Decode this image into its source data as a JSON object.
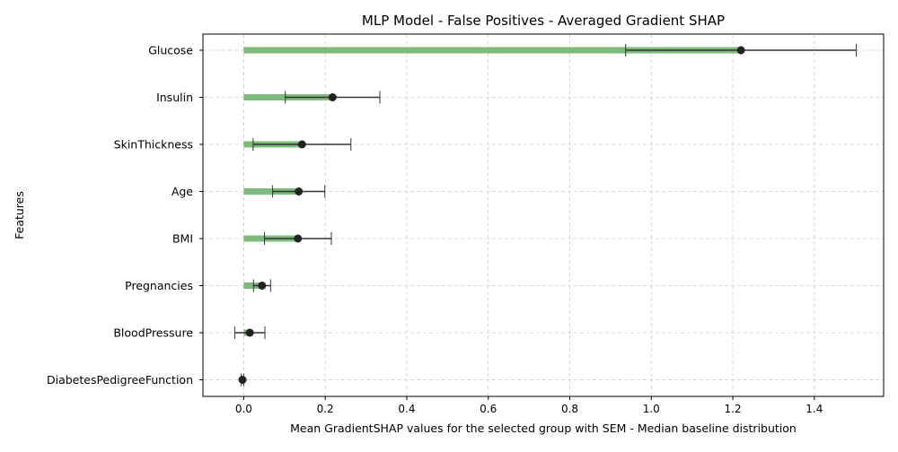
{
  "chart_data": {
    "type": "bar",
    "orientation": "horizontal",
    "title": "MLP Model - False Positives - Averaged Gradient SHAP",
    "xlabel": "Mean GradientSHAP values for the selected group with SEM - Median baseline distribution",
    "ylabel": "Features",
    "categories": [
      "Glucose",
      "Insulin",
      "SkinThickness",
      "Age",
      "BMI",
      "Pregnancies",
      "BloodPressure",
      "DiabetesPedigreeFunction"
    ],
    "values": [
      1.22,
      0.218,
      0.143,
      0.135,
      0.133,
      0.045,
      0.015,
      -0.003
    ],
    "sem": [
      0.283,
      0.116,
      0.12,
      0.064,
      0.082,
      0.021,
      0.037,
      0.003
    ],
    "xlim": [
      -0.1,
      1.57
    ],
    "xticks": [
      0.0,
      0.2,
      0.4,
      0.6,
      0.8,
      1.0,
      1.2,
      1.4
    ],
    "xtick_labels": [
      "0.0",
      "0.2",
      "0.4",
      "0.6",
      "0.8",
      "1.0",
      "1.2",
      "1.4"
    ],
    "grid": true,
    "colors": {
      "bar": "#7cbb79",
      "marker": "#222222",
      "error": "#333333",
      "grid": "#cccccc"
    }
  }
}
